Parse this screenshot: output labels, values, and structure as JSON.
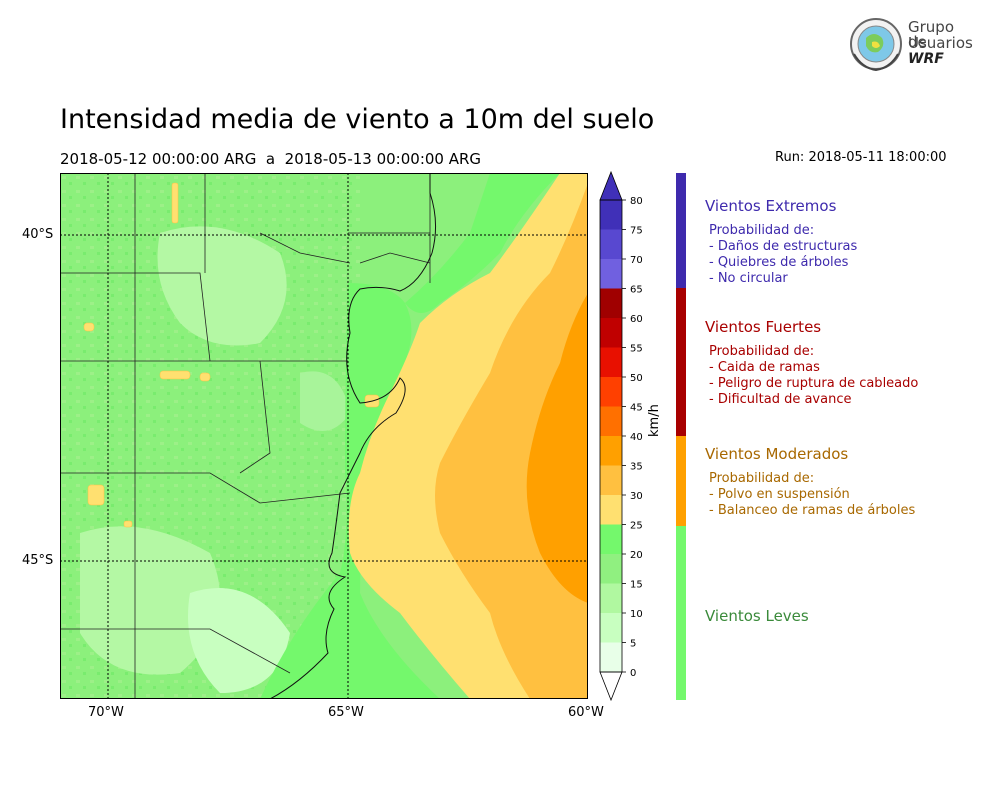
{
  "header": {
    "title": "Intensidad media de viento a 10m del suelo",
    "period": "2018-05-12 00:00:00 ARG  a  2018-05-13 00:00:00 ARG",
    "run": "Run: 2018-05-11 18:00:00"
  },
  "logo": {
    "line1": "Grupo de",
    "line2": "Usuarios",
    "line3": "WRF"
  },
  "axes": {
    "lat_labels": [
      "40°S",
      "45°S"
    ],
    "lon_labels": [
      "70°W",
      "65°W",
      "60°W"
    ]
  },
  "colorbar": {
    "units": "km/h",
    "ticks": [
      "0",
      "5",
      "10",
      "15",
      "20",
      "25",
      "30",
      "35",
      "40",
      "45",
      "50",
      "55",
      "60",
      "65",
      "70",
      "75",
      "80"
    ],
    "colors": [
      "#e8ffe8",
      "#c8ffc0",
      "#b0f8a0",
      "#90f080",
      "#74f86c",
      "#ffe070",
      "#ffc040",
      "#ffa000",
      "#ff7000",
      "#ff4000",
      "#e81000",
      "#c00000",
      "#a00000",
      "#7060e0",
      "#5848d0",
      "#4030b8"
    ]
  },
  "categories": [
    {
      "title": "Vientos Extremos",
      "color": "#3e2aad",
      "lines": [
        "Probabilidad de:",
        "- Daños de estructuras",
        "- Quiebres de árboles",
        "- No circular"
      ]
    },
    {
      "title": "Vientos Fuertes",
      "color": "#a80000",
      "lines": [
        "Probabilidad de:",
        "- Caida de ramas",
        "- Peligro de ruptura de cableado",
        "- Dificultad de avance"
      ]
    },
    {
      "title": "Vientos Moderados",
      "color": "#a86800",
      "lines": [
        "Probabilidad de:",
        "- Polvo en suspensión",
        "- Balanceo de ramas de árboles"
      ]
    },
    {
      "title": "Vientos Leves",
      "color": "#3a8a3a",
      "lines": []
    }
  ]
}
